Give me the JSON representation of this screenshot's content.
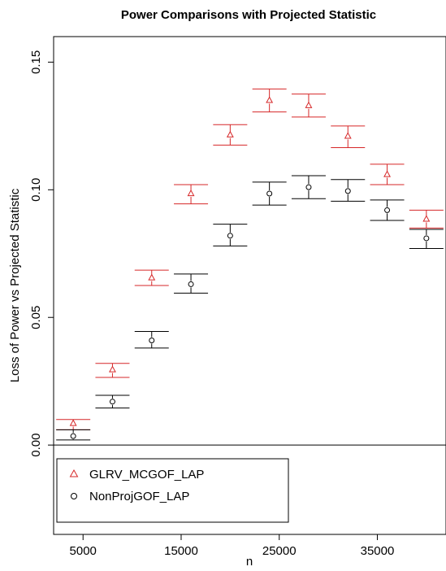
{
  "chart_data": {
    "type": "scatter",
    "title": "Power Comparisons with Projected Statistic",
    "xlabel": "n",
    "ylabel": "Loss of Power vs Projected Statistic",
    "xlim": [
      2000,
      42000
    ],
    "ylim": [
      -0.035,
      0.16
    ],
    "xticks": [
      5000,
      15000,
      25000,
      35000
    ],
    "xtick_labels": [
      "5000",
      "15000",
      "25000",
      "35000"
    ],
    "yticks": [
      0.0,
      0.05,
      0.1,
      0.15
    ],
    "ytick_labels": [
      "0.00",
      "0.05",
      "0.10",
      "0.15"
    ],
    "grid": false,
    "legend_position": "bottom-left",
    "x": [
      4000,
      8000,
      12000,
      16000,
      20000,
      24000,
      28000,
      32000,
      36000,
      40000
    ],
    "series": [
      {
        "name": "GLRV_MCGOF_LAP",
        "color": "#d62728",
        "marker": "triangle",
        "values": [
          0.0085,
          0.0295,
          0.0655,
          0.0985,
          0.1215,
          0.135,
          0.133,
          0.121,
          0.106,
          0.0885
        ],
        "lower": [
          0.006,
          0.0265,
          0.0625,
          0.0945,
          0.1175,
          0.1305,
          0.1285,
          0.1165,
          0.102,
          0.085
        ],
        "upper": [
          0.01,
          0.032,
          0.0685,
          0.102,
          0.1255,
          0.1395,
          0.1375,
          0.125,
          0.11,
          0.092
        ]
      },
      {
        "name": "NonProjGOF_LAP",
        "color": "#000000",
        "marker": "circle",
        "values": [
          0.0035,
          0.017,
          0.041,
          0.063,
          0.082,
          0.0985,
          0.101,
          0.0995,
          0.092,
          0.081
        ],
        "lower": [
          0.002,
          0.0145,
          0.038,
          0.0595,
          0.078,
          0.094,
          0.0965,
          0.0955,
          0.088,
          0.077
        ],
        "upper": [
          0.006,
          0.0195,
          0.0445,
          0.067,
          0.0865,
          0.103,
          0.1055,
          0.104,
          0.096,
          0.0845
        ]
      }
    ]
  }
}
